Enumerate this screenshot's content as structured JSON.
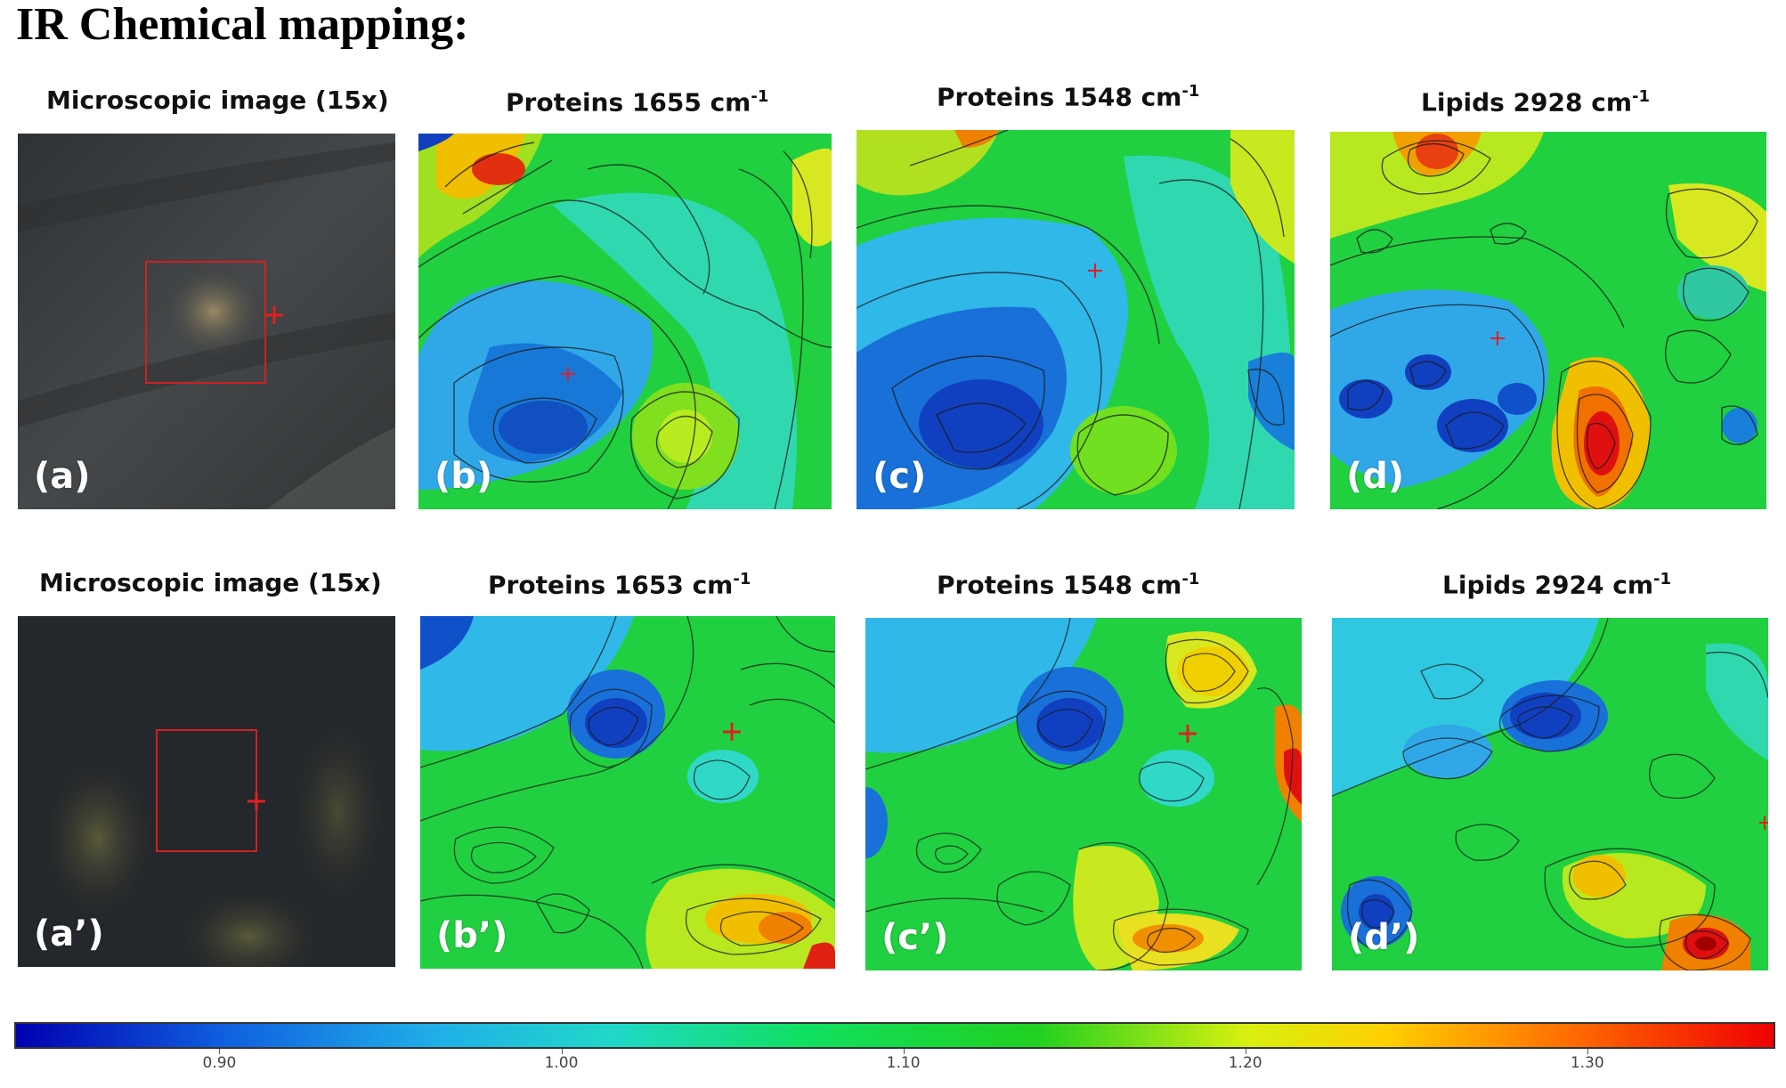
{
  "title": "IR Chemical mapping:",
  "rows": [
    {
      "panels": [
        {
          "label": "Microscopic image (15x)",
          "sup": "",
          "letter": "(a)",
          "kind": "micro"
        },
        {
          "label": "Proteins 1655 cm",
          "sup": "-1",
          "letter": "(b)",
          "kind": "map"
        },
        {
          "label": "Proteins 1548 cm",
          "sup": "-1",
          "letter": "(c)",
          "kind": "map"
        },
        {
          "label": "Lipids 2928 cm",
          "sup": "-1",
          "letter": "(d)",
          "kind": "map"
        }
      ]
    },
    {
      "panels": [
        {
          "label": "Microscopic image (15x)",
          "sup": "",
          "letter": "(a’)",
          "kind": "micro"
        },
        {
          "label": "Proteins 1653 cm",
          "sup": "-1",
          "letter": "(b’)",
          "kind": "map"
        },
        {
          "label": "Proteins 1548 cm",
          "sup": "-1",
          "letter": "(c’)",
          "kind": "map"
        },
        {
          "label": "Lipids 2924 cm",
          "sup": "-1",
          "letter": "(d’)",
          "kind": "map"
        }
      ]
    }
  ],
  "colorbar": {
    "ticks": [
      "0.90",
      "1.00",
      "1.10",
      "1.20",
      "1.30"
    ],
    "tick_values": [
      0.9,
      1.0,
      1.1,
      1.2,
      1.3
    ],
    "range": [
      0.84,
      1.355
    ],
    "colors": {
      "low": "#0000b0",
      "mid": "#10e060",
      "high": "#f00000"
    }
  },
  "marker_color": "#e02020"
}
